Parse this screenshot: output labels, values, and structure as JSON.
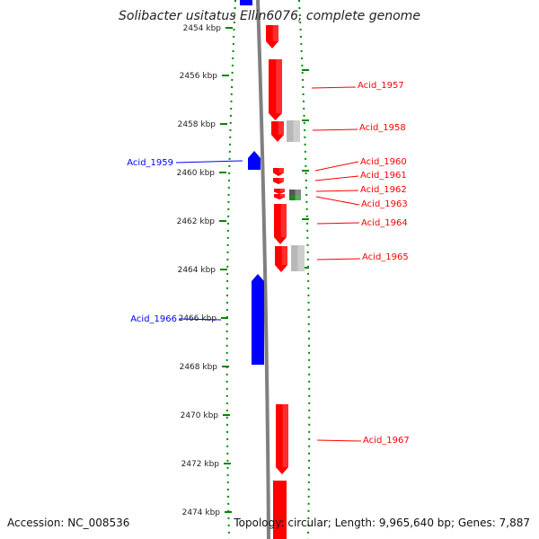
{
  "title": "Solibacter usitatus Ellin6076, complete genome",
  "footer": {
    "accession": "Accession: NC_008536",
    "topology": "Topology: circular; Length: 9,965,640 bp; Genes: 7,887"
  },
  "colors": {
    "forward": "#ff0000",
    "reverse": "#0000ff",
    "rna_gray": "#b8b8b8",
    "green": "#1a8a1a",
    "backbone": "#777777",
    "ticks": "#008800"
  },
  "ticks": [
    {
      "label": "2454 kbp"
    },
    {
      "label": "2456 kbp"
    },
    {
      "label": "2458 kbp"
    },
    {
      "label": "2460 kbp"
    },
    {
      "label": "2462 kbp"
    },
    {
      "label": "2464 kbp"
    },
    {
      "label": "2466 kbp"
    },
    {
      "label": "2468 kbp"
    },
    {
      "label": "2470 kbp"
    },
    {
      "label": "2472 kbp"
    },
    {
      "label": "2474 kbp"
    }
  ],
  "genes": [
    {
      "label": "Acid_1957",
      "strand": "+"
    },
    {
      "label": "Acid_1958",
      "strand": "+"
    },
    {
      "label": "Acid_1959",
      "strand": "-"
    },
    {
      "label": "Acid_1960",
      "strand": "+"
    },
    {
      "label": "Acid_1961",
      "strand": "+"
    },
    {
      "label": "Acid_1962",
      "strand": "+"
    },
    {
      "label": "Acid_1963",
      "strand": "+"
    },
    {
      "label": "Acid_1964",
      "strand": "+"
    },
    {
      "label": "Acid_1965",
      "strand": "+"
    },
    {
      "label": "Acid_1966",
      "strand": "-"
    },
    {
      "label": "Acid_1967",
      "strand": "+"
    }
  ]
}
